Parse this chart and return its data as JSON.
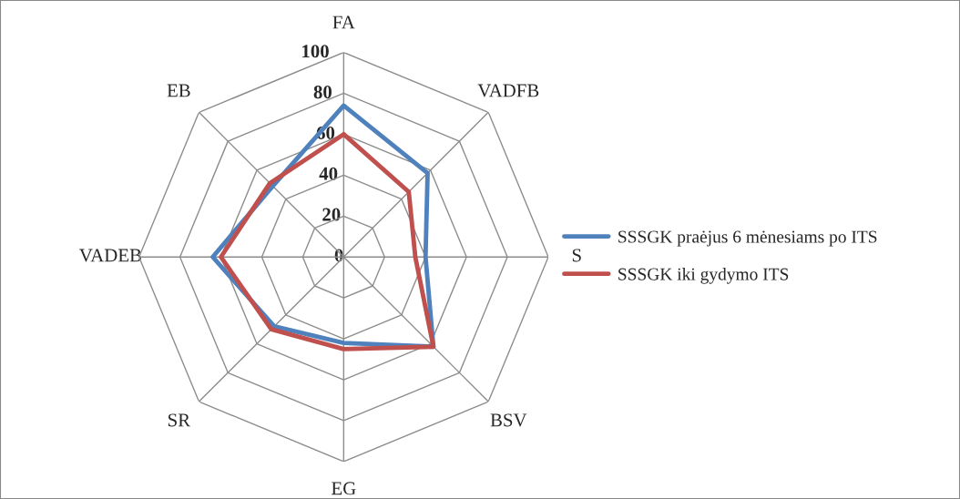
{
  "chart_data": {
    "type": "radar",
    "categories": [
      "FA",
      "VADFB",
      "S",
      "BSV",
      "EG",
      "SR",
      "VADEB",
      "EB"
    ],
    "series": [
      {
        "name": "SSSGK praėjus 6 mėnesiams po ITS",
        "color": "#4f81bd",
        "values": [
          74,
          58,
          40,
          62,
          42,
          48,
          64,
          49
        ]
      },
      {
        "name": "SSSGK iki gydymo ITS",
        "color": "#c0504d",
        "values": [
          60,
          45,
          35,
          62,
          45,
          50,
          60,
          51
        ]
      }
    ],
    "ylim": [
      0,
      100
    ],
    "yticks": [
      0,
      20,
      40,
      60,
      80,
      100
    ],
    "grid": true,
    "legend": "right",
    "marker": "none",
    "line_style": "solid"
  }
}
